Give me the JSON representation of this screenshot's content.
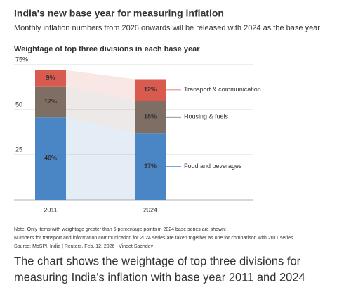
{
  "chart_data": {
    "type": "bar",
    "stacked": true,
    "title": "India's new base year for measuring inflation",
    "subtitle": "Monthly inflation numbers from 2026 onwards will be released with 2024 as the base year",
    "chart_title": "Weightage of top three divisions in each base year",
    "categories": [
      "2011",
      "2024"
    ],
    "series": [
      {
        "name": "Food and beverages",
        "color": "#4a86c5",
        "values": [
          46,
          37
        ],
        "value_labels": [
          "46%",
          "37%"
        ]
      },
      {
        "name": "Housing & fuels",
        "color": "#7e6e64",
        "values": [
          17,
          18
        ],
        "value_labels": [
          "17%",
          "18%"
        ]
      },
      {
        "name": "Transport & communication",
        "color": "#d95b50",
        "values": [
          9,
          12
        ],
        "value_labels": [
          "9%",
          "12%"
        ]
      }
    ],
    "ylim": [
      0,
      75
    ],
    "yticks": [
      {
        "value": 25,
        "label": "25"
      },
      {
        "value": 50,
        "label": "50"
      },
      {
        "value": 75,
        "label": "75%"
      }
    ],
    "grid": true,
    "notes": [
      "Note: Only items with weightage greater than 5 percentage points in 2024 base series are shown;",
      "Numbers for transport and information communication for 2024 series are taken together as one for comparison with 2011 series"
    ],
    "source": "Source: MoSPI, India | Reuters, Feb. 12, 2026  | Vineet Sachdev"
  },
  "caption": [
    "The chart shows the weightage of top three divisions for",
    "measuring India's inflation with base year 2011 and 2024"
  ]
}
